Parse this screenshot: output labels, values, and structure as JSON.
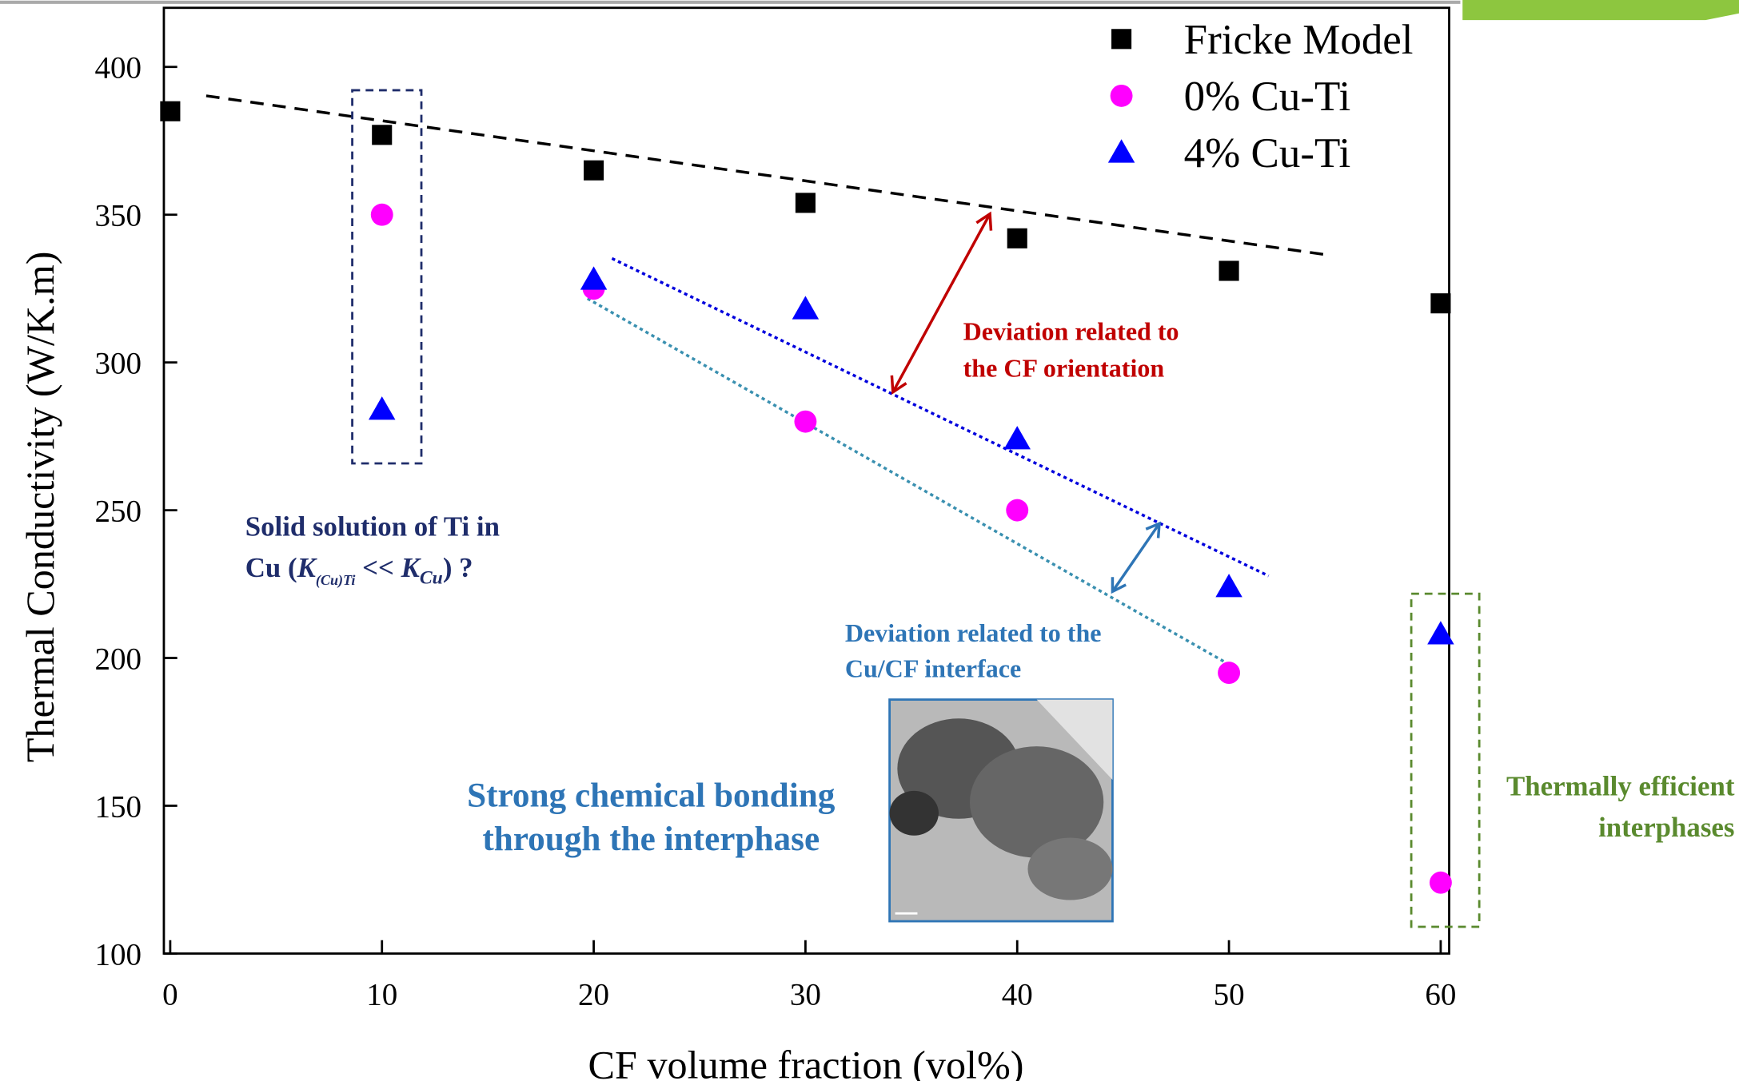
{
  "chart_data": {
    "type": "scatter",
    "xlabel": "CF volume fraction (vol%)",
    "ylabel": "Thermal Conductivity (W/K.m)",
    "xlim": [
      -0.3,
      60.4
    ],
    "ylim": [
      100,
      420
    ],
    "xticks": [
      0,
      10,
      20,
      30,
      40,
      50,
      60
    ],
    "yticks": [
      100,
      150,
      200,
      250,
      300,
      350,
      400
    ],
    "legend": "upper right",
    "series": [
      {
        "name": "Fricke Model",
        "color": "#000000",
        "marker": "square",
        "x": [
          0,
          10,
          20,
          30,
          40,
          50,
          60
        ],
        "values": [
          385,
          377,
          365,
          354,
          342,
          331,
          320
        ]
      },
      {
        "name": "0% Cu-Ti",
        "color": "#ff00ff",
        "marker": "circle",
        "x": [
          10,
          20,
          30,
          40,
          50,
          60
        ],
        "values": [
          350,
          325,
          280,
          250,
          195,
          124
        ]
      },
      {
        "name": "4% Cu-Ti",
        "color": "#0000ff",
        "marker": "triangle",
        "x": [
          10,
          20,
          30,
          40,
          50,
          60
        ],
        "values": [
          284,
          328,
          318,
          274,
          224,
          208
        ]
      }
    ],
    "annotations": {
      "cf_orientation": [
        "Deviation related to",
        "the CF orientation"
      ],
      "solid_solution": {
        "line1": "Solid solution of Ti in",
        "parts": [
          "Cu (",
          "K",
          "(Cu)Ti",
          " << ",
          "K",
          "Cu",
          ")  ?"
        ]
      },
      "interface": [
        "Deviation related to the",
        "Cu/CF interface"
      ],
      "bonding": [
        "Strong chemical bonding",
        "through the interphase"
      ],
      "interphases": [
        "Thermally efficient",
        "interphases"
      ]
    }
  }
}
